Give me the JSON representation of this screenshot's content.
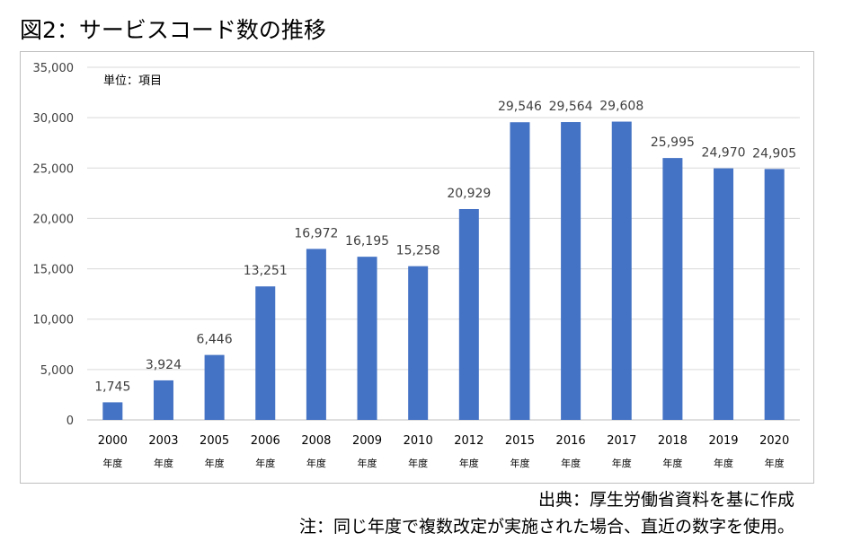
{
  "page": {
    "title": "図2：サービスコード数の推移",
    "source": "出典：厚生労働省資料を基に作成",
    "note": "注：同じ年度で複数改定が実施された場合、直近の数字を使用。"
  },
  "chart_data": {
    "type": "bar",
    "unit_label": "単位：項目",
    "categories": [
      "2000",
      "2003",
      "2005",
      "2006",
      "2008",
      "2009",
      "2010",
      "2012",
      "2015",
      "2016",
      "2017",
      "2018",
      "2019",
      "2020"
    ],
    "category_suffix": "年度",
    "values": [
      1745,
      3924,
      6446,
      13251,
      16972,
      16195,
      15258,
      20929,
      29546,
      29564,
      29608,
      25995,
      24970,
      24905
    ],
    "value_labels": [
      "1,745",
      "3,924",
      "6,446",
      "13,251",
      "16,972",
      "16,195",
      "15,258",
      "20,929",
      "29,546",
      "29,564",
      "29,608",
      "25,995",
      "24,970",
      "24,905"
    ],
    "ylim": [
      0,
      35000
    ],
    "y_ticks": [
      "0",
      "5,000",
      "10,000",
      "15,000",
      "20,000",
      "25,000",
      "30,000",
      "35,000"
    ],
    "y_tick_values": [
      0,
      5000,
      10000,
      15000,
      20000,
      25000,
      30000,
      35000
    ],
    "bar_color": "#4472c4",
    "grid": true,
    "gridline_color": "#d9d9d9"
  }
}
